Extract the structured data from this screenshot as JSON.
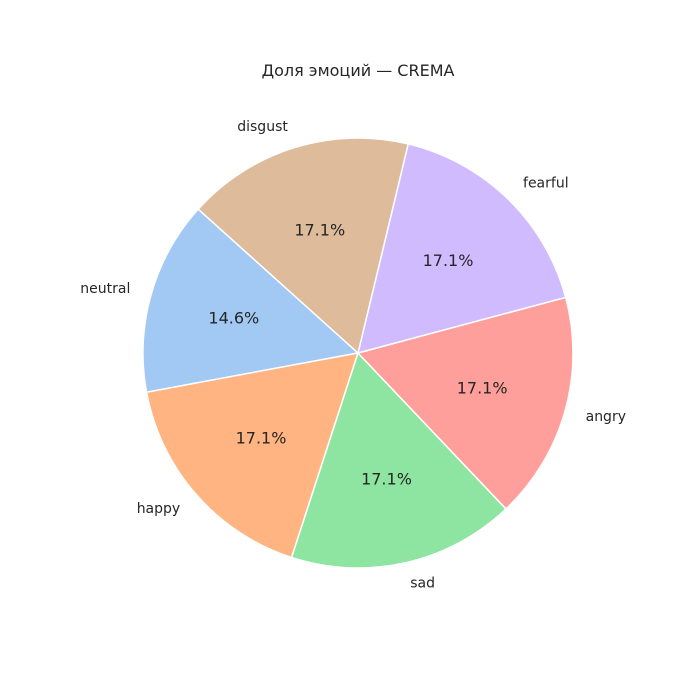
{
  "chart_data": {
    "type": "pie",
    "title": "Доля эмоций — CREMA",
    "start_angle_deg": 138,
    "direction": "counterclockwise",
    "slices": [
      {
        "label": "neutral",
        "pct_label": "14.6%",
        "value": 14.6,
        "color": "#a1c9f4"
      },
      {
        "label": "happy",
        "pct_label": "17.1%",
        "value": 17.1,
        "color": "#ffb482"
      },
      {
        "label": "sad",
        "pct_label": "17.1%",
        "value": 17.1,
        "color": "#8de5a1"
      },
      {
        "label": "angry",
        "pct_label": "17.1%",
        "value": 17.1,
        "color": "#ff9f9b"
      },
      {
        "label": "fearful",
        "pct_label": "17.1%",
        "value": 17.1,
        "color": "#d0bbff"
      },
      {
        "label": "disgust",
        "pct_label": "17.1%",
        "value": 17.1,
        "color": "#debb9b"
      }
    ]
  }
}
